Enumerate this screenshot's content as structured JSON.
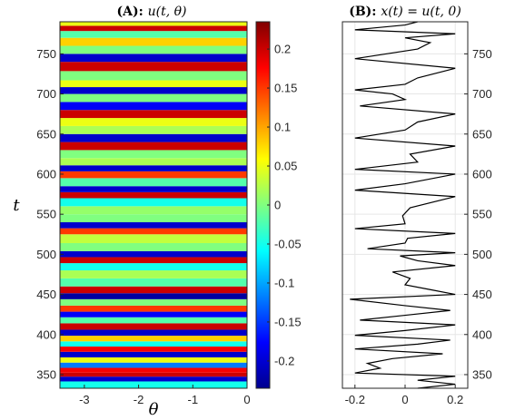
{
  "chart_data": [
    {
      "type": "heatmap",
      "title_prefix": "(A): ",
      "title_math": "u(t, θ)",
      "xlabel": "θ",
      "ylabel": "t",
      "xlim": [
        -3.45,
        0
      ],
      "ylim": [
        333,
        790
      ],
      "xticks": [
        -3,
        -2,
        -1,
        0
      ],
      "xtick_labels": [
        "-3",
        "-2",
        "-1",
        "0"
      ],
      "yticks": [
        350,
        400,
        450,
        500,
        550,
        600,
        650,
        700,
        750
      ],
      "ytick_labels": [
        "350",
        "400",
        "450",
        "500",
        "550",
        "600",
        "650",
        "700",
        "750"
      ],
      "colorbar": {
        "range": [
          -0.235,
          0.235
        ],
        "ticks": [
          -0.2,
          -0.15,
          -0.1,
          -0.05,
          0,
          0.05,
          0.1,
          0.15,
          0.2
        ],
        "tick_labels": [
          "-0.2",
          "-0.15",
          "-0.1",
          "-0.05",
          "0",
          "0.05",
          "0.1",
          "0.15",
          "0.2"
        ],
        "colormap": "jet"
      },
      "bands": [
        {
          "t": 338,
          "u": -0.05
        },
        {
          "t": 345,
          "u": -0.2
        },
        {
          "t": 350,
          "u": 0.2
        },
        {
          "t": 355,
          "u": 0.18
        },
        {
          "t": 362,
          "u": -0.12
        },
        {
          "t": 368,
          "u": 0.05
        },
        {
          "t": 375,
          "u": -0.2
        },
        {
          "t": 382,
          "u": 0.18
        },
        {
          "t": 388,
          "u": -0.05
        },
        {
          "t": 395,
          "u": 0.08
        },
        {
          "t": 402,
          "u": -0.2
        },
        {
          "t": 410,
          "u": 0.2
        },
        {
          "t": 418,
          "u": -0.02
        },
        {
          "t": 425,
          "u": -0.18
        },
        {
          "t": 432,
          "u": 0.15
        },
        {
          "t": 440,
          "u": 0.0
        },
        {
          "t": 448,
          "u": -0.22
        },
        {
          "t": 455,
          "u": 0.2
        },
        {
          "t": 465,
          "u": -0.02
        },
        {
          "t": 475,
          "u": 0.02
        },
        {
          "t": 485,
          "u": -0.05
        },
        {
          "t": 493,
          "u": 0.2
        },
        {
          "t": 500,
          "u": -0.2
        },
        {
          "t": 508,
          "u": 0.0
        },
        {
          "t": 520,
          "u": 0.03
        },
        {
          "t": 530,
          "u": 0.15
        },
        {
          "t": 535,
          "u": -0.2
        },
        {
          "t": 545,
          "u": 0.0
        },
        {
          "t": 555,
          "u": 0.01
        },
        {
          "t": 565,
          "u": -0.05
        },
        {
          "t": 575,
          "u": 0.2
        },
        {
          "t": 580,
          "u": -0.2
        },
        {
          "t": 590,
          "u": -0.02
        },
        {
          "t": 600,
          "u": 0.15
        },
        {
          "t": 607,
          "u": -0.2
        },
        {
          "t": 615,
          "u": 0.02
        },
        {
          "t": 625,
          "u": 0.0
        },
        {
          "t": 635,
          "u": 0.2
        },
        {
          "t": 645,
          "u": -0.2
        },
        {
          "t": 655,
          "u": 0.02
        },
        {
          "t": 665,
          "u": 0.05
        },
        {
          "t": 675,
          "u": 0.2
        },
        {
          "t": 685,
          "u": -0.18
        },
        {
          "t": 695,
          "u": 0.0
        },
        {
          "t": 705,
          "u": -0.2
        },
        {
          "t": 712,
          "u": 0.05
        },
        {
          "t": 722,
          "u": 0.0
        },
        {
          "t": 735,
          "u": 0.2
        },
        {
          "t": 745,
          "u": -0.2
        },
        {
          "t": 755,
          "u": 0.0
        },
        {
          "t": 765,
          "u": 0.08
        },
        {
          "t": 775,
          "u": -0.02
        },
        {
          "t": 782,
          "u": 0.2
        },
        {
          "t": 788,
          "u": 0.05
        }
      ]
    },
    {
      "type": "line",
      "title_prefix": "(B): ",
      "title_math": "x(t) = u(t, 0)",
      "xlim": [
        -0.25,
        0.25
      ],
      "ylim": [
        333,
        790
      ],
      "xticks": [
        -0.2,
        0,
        0.2
      ],
      "xtick_labels": [
        "-0.2",
        "0",
        "0.2"
      ],
      "yticks": [
        350,
        400,
        450,
        500,
        550,
        600,
        650,
        700,
        750
      ],
      "ytick_labels": [
        "350",
        "400",
        "450",
        "500",
        "550",
        "600",
        "650",
        "700",
        "750"
      ],
      "series": [
        {
          "points": [
            [
              0.05,
              333
            ],
            [
              0.2,
              338
            ],
            [
              0.05,
              343
            ],
            [
              0.2,
              348
            ],
            [
              -0.2,
              352
            ],
            [
              -0.1,
              358
            ],
            [
              -0.15,
              364
            ],
            [
              -0.05,
              370
            ],
            [
              0.15,
              376
            ],
            [
              -0.2,
              382
            ],
            [
              0.05,
              388
            ],
            [
              0.18,
              393
            ],
            [
              -0.2,
              399
            ],
            [
              0.0,
              405
            ],
            [
              0.2,
              412
            ],
            [
              -0.18,
              418
            ],
            [
              0.0,
              424
            ],
            [
              0.18,
              430
            ],
            [
              0.0,
              436
            ],
            [
              -0.22,
              444
            ],
            [
              0.2,
              450
            ],
            [
              0.1,
              456
            ],
            [
              0.0,
              462
            ],
            [
              0.02,
              470
            ],
            [
              -0.05,
              478
            ],
            [
              0.2,
              486
            ],
            [
              0.05,
              492
            ],
            [
              -0.02,
              498
            ],
            [
              0.2,
              502
            ],
            [
              -0.15,
              507
            ],
            [
              0.0,
              514
            ],
            [
              0.01,
              520
            ],
            [
              0.2,
              526
            ],
            [
              -0.2,
              532
            ],
            [
              0.0,
              538
            ],
            [
              -0.01,
              548
            ],
            [
              0.02,
              558
            ],
            [
              0.2,
              572
            ],
            [
              -0.2,
              580
            ],
            [
              0.0,
              588
            ],
            [
              0.2,
              600
            ],
            [
              -0.2,
              606
            ],
            [
              0.05,
              615
            ],
            [
              0.02,
              625
            ],
            [
              0.2,
              635
            ],
            [
              -0.2,
              645
            ],
            [
              0.0,
              655
            ],
            [
              0.05,
              665
            ],
            [
              0.2,
              675
            ],
            [
              -0.18,
              685
            ],
            [
              0.0,
              693
            ],
            [
              -0.05,
              700
            ],
            [
              -0.2,
              705
            ],
            [
              0.0,
              712
            ],
            [
              0.05,
              720
            ],
            [
              0.2,
              732
            ],
            [
              -0.2,
              744
            ],
            [
              0.05,
              756
            ],
            [
              0.1,
              764
            ],
            [
              0.0,
              770
            ],
            [
              0.2,
              775
            ],
            [
              -0.2,
              780
            ],
            [
              0.0,
              786
            ],
            [
              0.05,
              790
            ]
          ]
        }
      ]
    }
  ]
}
